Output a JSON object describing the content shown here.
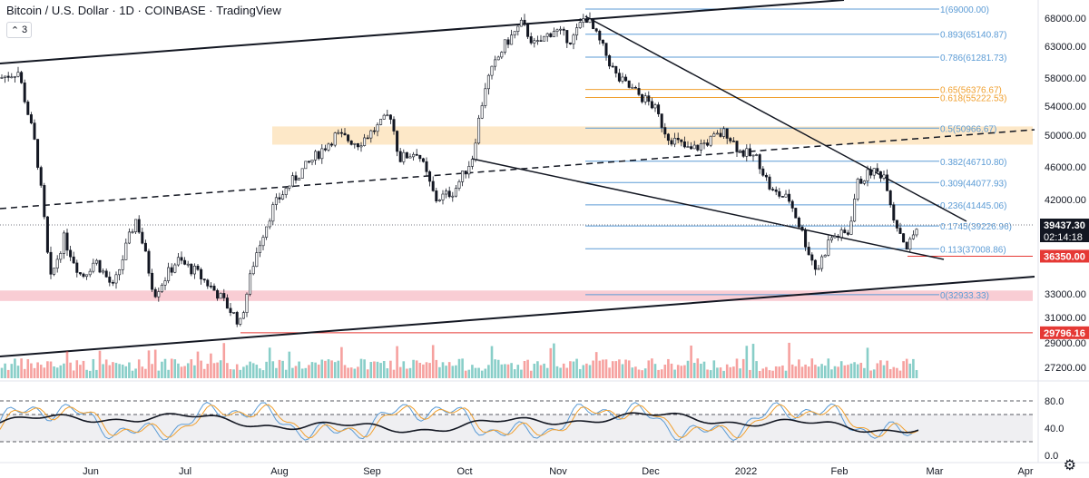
{
  "header": {
    "symbol": "Bitcoin",
    "sep1": " / ",
    "quote": "U.S. Dollar",
    "dot1": " · ",
    "interval": "1D",
    "dot2": " · ",
    "exchange": "COINBASE",
    "dot3": " · ",
    "platform": "TradingView"
  },
  "collapse_count": "3",
  "colors": {
    "up": "#26a69a",
    "down": "#ef5350",
    "fib_blue": "#5b9bd5",
    "fib_orange": "#f0a030",
    "zone_orange": "#fde6c2",
    "zone_pink": "#f8c8cf",
    "support_red": "#e53935",
    "rsi_black": "#131722",
    "stoch_blue": "#5b9bd5",
    "stoch_orange": "#f0a030"
  },
  "chart_data": {
    "type": "candlestick",
    "price_axis_ticks": [
      "68000.00",
      "63000.00",
      "58000.00",
      "54000.00",
      "50000.00",
      "46000.00",
      "42000.00",
      "38000.00",
      "33000.00",
      "31000.00",
      "29000.00",
      "27200.00"
    ],
    "time_axis_ticks": [
      "Jun",
      "Jul",
      "Aug",
      "Sep",
      "Oct",
      "Nov",
      "Dec",
      "2022",
      "Feb",
      "Mar",
      "Apr"
    ],
    "rsi_axis_ticks": [
      "80.0",
      "40.0",
      "0.0"
    ],
    "price_labels": [
      {
        "name": "last-price",
        "value": "39437.30",
        "sub": "02:14:18",
        "bg": "#131722"
      },
      {
        "name": "support-1",
        "value": "36350.00",
        "bg": "#e53935"
      },
      {
        "name": "support-2",
        "value": "29796.16",
        "bg": "#e53935"
      }
    ],
    "fib_levels": [
      {
        "label": "1(69000.00)",
        "value": 69000,
        "color": "blue"
      },
      {
        "label": "0.893(65140.87)",
        "value": 65140.87,
        "color": "blue"
      },
      {
        "label": "0.786(61281.73)",
        "value": 61281.73,
        "color": "blue"
      },
      {
        "label": "0.65(56376.67)",
        "value": 56376.67,
        "color": "orange"
      },
      {
        "label": "0.618(55222.53)",
        "value": 55222.53,
        "color": "orange"
      },
      {
        "label": "0.5(50966.67)",
        "value": 50966.67,
        "color": "blue"
      },
      {
        "label": "0.382(46710.80)",
        "value": 46710.8,
        "color": "blue"
      },
      {
        "label": "0.309(44077.93)",
        "value": 44077.93,
        "color": "blue"
      },
      {
        "label": "0.236(41445.06)",
        "value": 41445.06,
        "color": "blue"
      },
      {
        "label": "0.1745(39226.96)",
        "value": 39226.96,
        "color": "blue"
      },
      {
        "label": "0.113(37008.86)",
        "value": 37008.86,
        "color": "blue"
      },
      {
        "label": "0(32933.33)",
        "value": 32933.33,
        "color": "blue"
      }
    ],
    "zones": [
      {
        "name": "resistance-zone",
        "from": 48800,
        "to": 51200,
        "color": "orange"
      },
      {
        "name": "support-zone",
        "from": 32400,
        "to": 33300,
        "color": "pink"
      }
    ],
    "horizontal_levels": [
      {
        "name": "support-36350",
        "value": 36350
      },
      {
        "name": "support-29796",
        "value": 29796.16
      }
    ],
    "rsi_bands": [
      80,
      60,
      20
    ],
    "candle_keypoints": [
      [
        0,
        58000
      ],
      [
        20,
        59000
      ],
      [
        40,
        48000
      ],
      [
        55,
        34000
      ],
      [
        70,
        38000
      ],
      [
        90,
        34500
      ],
      [
        105,
        36000
      ],
      [
        125,
        33500
      ],
      [
        150,
        40000
      ],
      [
        170,
        33000
      ],
      [
        195,
        36000
      ],
      [
        215,
        35000
      ],
      [
        240,
        33000
      ],
      [
        265,
        30500
      ],
      [
        280,
        36000
      ],
      [
        300,
        41000
      ],
      [
        320,
        44000
      ],
      [
        345,
        47000
      ],
      [
        370,
        50000
      ],
      [
        395,
        49000
      ],
      [
        420,
        51500
      ],
      [
        430,
        53000
      ],
      [
        440,
        47000
      ],
      [
        460,
        48000
      ],
      [
        480,
        42000
      ],
      [
        500,
        43000
      ],
      [
        520,
        47000
      ],
      [
        535,
        57000
      ],
      [
        555,
        63000
      ],
      [
        575,
        67000
      ],
      [
        590,
        63000
      ],
      [
        610,
        66000
      ],
      [
        630,
        64000
      ],
      [
        645,
        68500
      ],
      [
        660,
        64000
      ],
      [
        680,
        58000
      ],
      [
        700,
        56000
      ],
      [
        720,
        54000
      ],
      [
        735,
        50000
      ],
      [
        760,
        48000
      ],
      [
        785,
        49500
      ],
      [
        800,
        50500
      ],
      [
        815,
        48000
      ],
      [
        835,
        47000
      ],
      [
        850,
        43000
      ],
      [
        870,
        42000
      ],
      [
        890,
        37000
      ],
      [
        900,
        35000
      ],
      [
        915,
        38000
      ],
      [
        935,
        38500
      ],
      [
        945,
        44000
      ],
      [
        960,
        45500
      ],
      [
        975,
        45000
      ],
      [
        985,
        40000
      ],
      [
        1000,
        37000
      ],
      [
        1012,
        39400
      ]
    ]
  }
}
